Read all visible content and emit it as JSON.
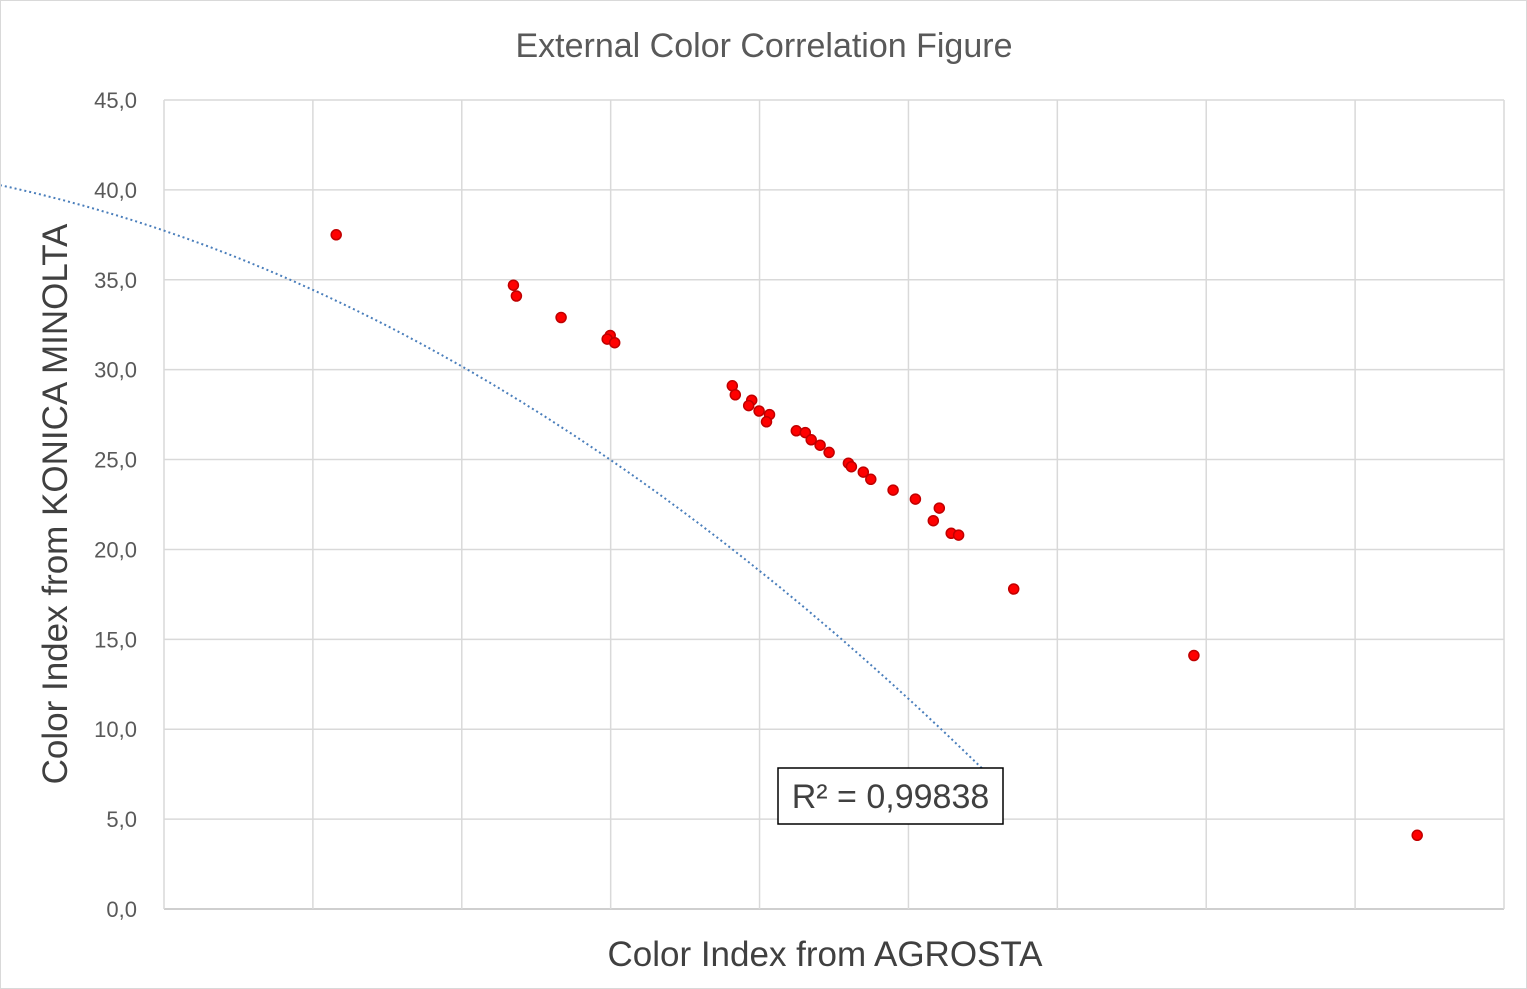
{
  "chart_data": {
    "type": "scatter",
    "title": "External Color Correlation Figure",
    "xlabel": "Color Index from AGROSTA",
    "ylabel": "Color Index from KONICA MINOLTA",
    "ylim": [
      0,
      45
    ],
    "yticks": [
      "0,0",
      "5,0",
      "10,0",
      "15,0",
      "20,0",
      "25,0",
      "30,0",
      "35,0",
      "40,0",
      "45,0"
    ],
    "x_grid_lines": 9,
    "x_tick_labels_shown": false,
    "grid": true,
    "point_color": "#ff0000",
    "point_edge_color": "#c00000",
    "trendline_color": "#4a7ebb",
    "trendline_style": "dotted polynomial",
    "annotation": "R² = 0,99838",
    "trendline_x_range": [
      -8.2,
      0.5
    ],
    "trendline_coefficients": [
      -0.1718,
      0.2373
    ],
    "series": [
      {
        "points": [
          [
            -3.84,
            37.5
          ],
          [
            -2.65,
            34.7
          ],
          [
            -2.63,
            34.1
          ],
          [
            -2.33,
            32.9
          ],
          [
            -2.0,
            31.9
          ],
          [
            -2.02,
            31.7
          ],
          [
            -1.97,
            31.5
          ],
          [
            -1.18,
            29.1
          ],
          [
            -1.16,
            28.6
          ],
          [
            -1.05,
            28.3
          ],
          [
            -1.07,
            28.0
          ],
          [
            -1.0,
            27.7
          ],
          [
            -0.93,
            27.5
          ],
          [
            -0.95,
            27.1
          ],
          [
            -0.75,
            26.6
          ],
          [
            -0.69,
            26.5
          ],
          [
            -0.65,
            26.1
          ],
          [
            -0.59,
            25.8
          ],
          [
            -0.53,
            25.4
          ],
          [
            -0.4,
            24.8
          ],
          [
            -0.38,
            24.6
          ],
          [
            -0.3,
            24.3
          ],
          [
            -0.25,
            23.9
          ],
          [
            -0.1,
            23.3
          ],
          [
            0.05,
            22.8
          ],
          [
            0.21,
            22.3
          ],
          [
            0.17,
            21.6
          ],
          [
            0.29,
            20.9
          ],
          [
            0.34,
            20.8
          ],
          [
            0.71,
            17.8
          ],
          [
            1.92,
            14.1
          ],
          [
            3.42,
            4.1
          ]
        ]
      }
    ]
  }
}
